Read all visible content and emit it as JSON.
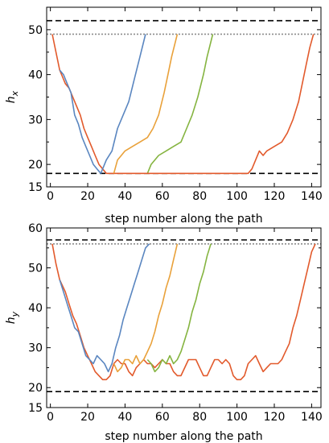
{
  "colors": {
    "blue": "#5a86c0",
    "orange": "#e9a13a",
    "green": "#85b440",
    "red": "#e25a2c",
    "black": "#000000",
    "gray": "#8c8c8c"
  },
  "chart_data": [
    {
      "type": "line",
      "xlabel": "step number along the path",
      "ylabel_main": "h",
      "ylabel_sub": "x",
      "xlim": [
        -2,
        145
      ],
      "ylim": [
        15,
        55
      ],
      "xticks": [
        0,
        20,
        40,
        60,
        80,
        100,
        120,
        140
      ],
      "yticks": [
        15,
        20,
        30,
        40,
        50
      ],
      "yticks_minor": [
        25,
        35,
        45
      ],
      "hlines": [
        {
          "y": 52,
          "style": "dashed",
          "color": "black"
        },
        {
          "y": 49,
          "style": "dotted",
          "color": "gray"
        },
        {
          "y": 18,
          "style": "dashed",
          "color": "black"
        }
      ],
      "series": [
        {
          "color": "red",
          "points": [
            [
              1,
              49
            ],
            [
              3,
              45
            ],
            [
              5,
              41
            ],
            [
              8,
              38
            ],
            [
              10,
              37
            ],
            [
              12,
              35
            ],
            [
              14,
              33
            ],
            [
              16,
              31
            ],
            [
              18,
              28
            ],
            [
              20,
              26
            ],
            [
              22,
              24
            ],
            [
              24,
              22
            ],
            [
              26,
              20
            ],
            [
              28,
              19
            ],
            [
              30,
              18
            ],
            [
              32,
              18
            ],
            [
              34,
              18
            ],
            [
              36,
              18
            ]
          ]
        },
        {
          "color": "blue",
          "points": [
            [
              5,
              41
            ],
            [
              7,
              40
            ],
            [
              9,
              38
            ],
            [
              11,
              36
            ],
            [
              13,
              31
            ],
            [
              15,
              29
            ],
            [
              17,
              26
            ],
            [
              19,
              24
            ],
            [
              21,
              22
            ],
            [
              23,
              20
            ],
            [
              25,
              19
            ],
            [
              27,
              18
            ],
            [
              30,
              21
            ],
            [
              33,
              23
            ],
            [
              36,
              28
            ],
            [
              39,
              31
            ],
            [
              42,
              34
            ],
            [
              45,
              39
            ],
            [
              48,
              44
            ],
            [
              51,
              49
            ]
          ]
        },
        {
          "color": "orange",
          "points": [
            [
              34,
              18
            ],
            [
              36,
              21
            ],
            [
              38,
              22
            ],
            [
              40,
              23
            ],
            [
              44,
              24
            ],
            [
              48,
              25
            ],
            [
              52,
              26
            ],
            [
              55,
              28
            ],
            [
              58,
              31
            ],
            [
              61,
              36
            ],
            [
              63,
              40
            ],
            [
              65,
              44
            ],
            [
              68,
              49
            ]
          ]
        },
        {
          "color": "green",
          "points": [
            [
              52,
              18
            ],
            [
              54,
              20
            ],
            [
              56,
              21
            ],
            [
              58,
              22
            ],
            [
              62,
              23
            ],
            [
              66,
              24
            ],
            [
              70,
              25
            ],
            [
              73,
              28
            ],
            [
              76,
              31
            ],
            [
              79,
              35
            ],
            [
              82,
              40
            ],
            [
              84,
              44
            ],
            [
              87,
              49
            ]
          ]
        },
        {
          "color": "red",
          "points": [
            [
              36,
              18
            ],
            [
              60,
              18
            ],
            [
              80,
              18
            ],
            [
              100,
              18
            ],
            [
              106,
              18
            ],
            [
              108,
              19
            ],
            [
              110,
              21
            ],
            [
              112,
              23
            ],
            [
              114,
              22
            ],
            [
              116,
              23
            ],
            [
              120,
              24
            ],
            [
              124,
              25
            ],
            [
              127,
              27
            ],
            [
              130,
              30
            ],
            [
              133,
              34
            ],
            [
              135,
              38
            ],
            [
              137,
              42
            ],
            [
              139,
              46
            ],
            [
              141,
              49
            ]
          ]
        }
      ]
    },
    {
      "type": "line",
      "xlabel": "step number along the path",
      "ylabel_main": "h",
      "ylabel_sub": "y",
      "xlim": [
        -2,
        145
      ],
      "ylim": [
        15,
        60
      ],
      "xticks": [
        0,
        20,
        40,
        60,
        80,
        100,
        120,
        140
      ],
      "yticks": [
        15,
        20,
        30,
        40,
        50,
        60
      ],
      "yticks_minor": [
        25,
        35,
        45,
        55
      ],
      "hlines": [
        {
          "y": 57,
          "style": "dashed",
          "color": "black"
        },
        {
          "y": 56,
          "style": "dotted",
          "color": "gray"
        },
        {
          "y": 19,
          "style": "dashed",
          "color": "black"
        }
      ],
      "series": [
        {
          "color": "red",
          "points": [
            [
              1,
              56
            ],
            [
              3,
              51
            ],
            [
              5,
              47
            ],
            [
              8,
              44
            ],
            [
              10,
              41
            ],
            [
              12,
              38
            ],
            [
              14,
              36
            ],
            [
              16,
              33
            ],
            [
              18,
              30
            ],
            [
              20,
              28
            ],
            [
              22,
              26
            ],
            [
              24,
              24
            ],
            [
              26,
              23
            ],
            [
              28,
              22
            ],
            [
              30,
              22
            ],
            [
              32,
              23
            ],
            [
              34,
              26
            ],
            [
              36,
              27
            ],
            [
              38,
              26
            ],
            [
              40,
              26
            ],
            [
              42,
              24
            ],
            [
              44,
              23
            ],
            [
              46,
              25
            ],
            [
              48,
              26
            ],
            [
              50,
              27
            ],
            [
              52,
              26
            ],
            [
              54,
              26
            ],
            [
              56,
              25
            ],
            [
              58,
              26
            ],
            [
              60,
              27
            ],
            [
              62,
              26
            ],
            [
              64,
              26
            ],
            [
              66,
              24
            ],
            [
              68,
              23
            ],
            [
              70,
              23
            ],
            [
              72,
              25
            ],
            [
              74,
              27
            ],
            [
              76,
              27
            ],
            [
              78,
              27
            ],
            [
              80,
              25
            ],
            [
              82,
              23
            ],
            [
              84,
              23
            ],
            [
              86,
              25
            ],
            [
              88,
              27
            ],
            [
              90,
              27
            ],
            [
              92,
              26
            ],
            [
              94,
              27
            ],
            [
              96,
              26
            ],
            [
              98,
              23
            ],
            [
              100,
              22
            ],
            [
              102,
              22
            ],
            [
              104,
              23
            ],
            [
              106,
              26
            ],
            [
              108,
              27
            ],
            [
              110,
              28
            ],
            [
              112,
              26
            ],
            [
              114,
              24
            ],
            [
              116,
              25
            ],
            [
              118,
              26
            ],
            [
              120,
              26
            ],
            [
              122,
              26
            ],
            [
              124,
              27
            ],
            [
              126,
              29
            ],
            [
              128,
              31
            ],
            [
              130,
              35
            ],
            [
              132,
              38
            ],
            [
              134,
              42
            ],
            [
              136,
              46
            ],
            [
              138,
              50
            ],
            [
              140,
              54
            ],
            [
              142,
              56
            ]
          ]
        },
        {
          "color": "blue",
          "points": [
            [
              5,
              47
            ],
            [
              7,
              44
            ],
            [
              9,
              41
            ],
            [
              11,
              38
            ],
            [
              13,
              35
            ],
            [
              15,
              34
            ],
            [
              17,
              31
            ],
            [
              19,
              28
            ],
            [
              21,
              27
            ],
            [
              23,
              26
            ],
            [
              25,
              28
            ],
            [
              27,
              27
            ],
            [
              29,
              26
            ],
            [
              31,
              24
            ],
            [
              33,
              26
            ],
            [
              35,
              30
            ],
            [
              37,
              33
            ],
            [
              39,
              37
            ],
            [
              41,
              40
            ],
            [
              43,
              43
            ],
            [
              45,
              46
            ],
            [
              47,
              49
            ],
            [
              49,
              52
            ],
            [
              51,
              55
            ],
            [
              53,
              56
            ]
          ]
        },
        {
          "color": "orange",
          "points": [
            [
              34,
              26
            ],
            [
              36,
              24
            ],
            [
              38,
              25
            ],
            [
              40,
              27
            ],
            [
              42,
              27
            ],
            [
              44,
              26
            ],
            [
              46,
              28
            ],
            [
              48,
              26
            ],
            [
              50,
              27
            ],
            [
              52,
              29
            ],
            [
              54,
              31
            ],
            [
              56,
              34
            ],
            [
              58,
              38
            ],
            [
              60,
              41
            ],
            [
              62,
              45
            ],
            [
              64,
              48
            ],
            [
              66,
              52
            ],
            [
              68,
              56
            ]
          ]
        },
        {
          "color": "green",
          "points": [
            [
              52,
              27
            ],
            [
              54,
              26
            ],
            [
              56,
              24
            ],
            [
              58,
              25
            ],
            [
              60,
              27
            ],
            [
              62,
              26
            ],
            [
              64,
              28
            ],
            [
              66,
              26
            ],
            [
              68,
              27
            ],
            [
              70,
              29
            ],
            [
              72,
              32
            ],
            [
              74,
              35
            ],
            [
              76,
              39
            ],
            [
              78,
              42
            ],
            [
              80,
              46
            ],
            [
              82,
              49
            ],
            [
              84,
              53
            ],
            [
              86,
              56
            ]
          ]
        }
      ]
    }
  ]
}
